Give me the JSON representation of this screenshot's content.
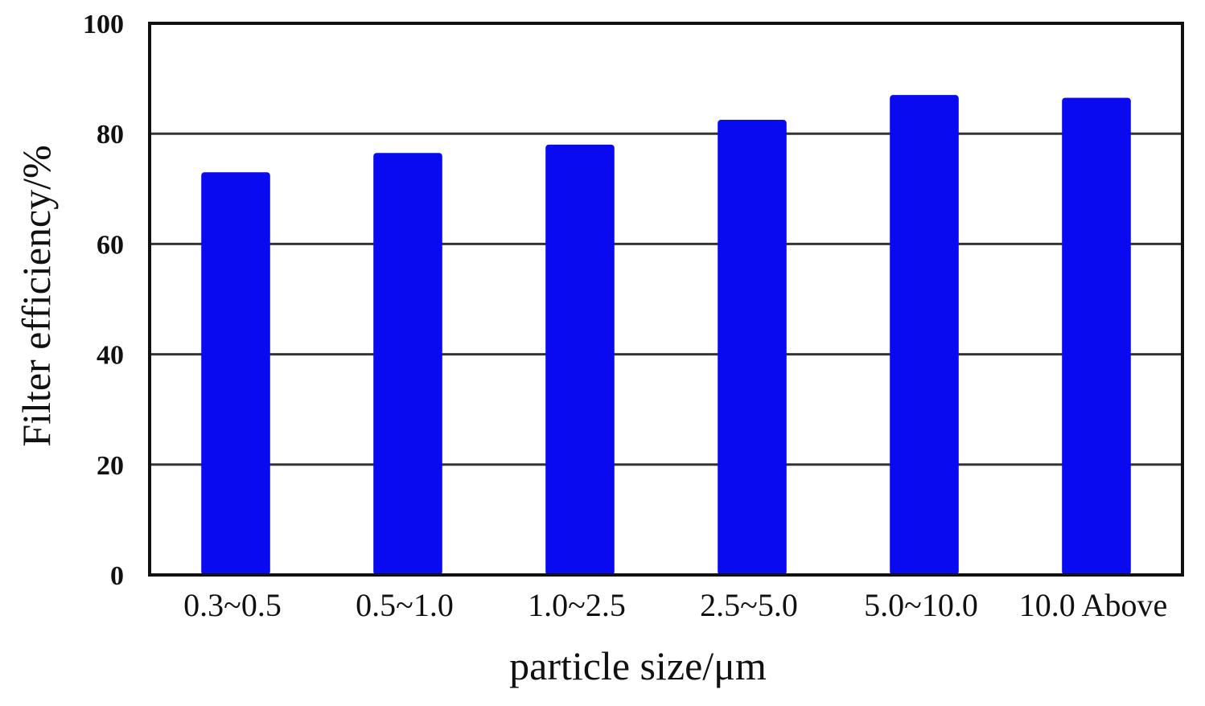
{
  "chart_data": {
    "type": "bar",
    "categories": [
      "0.3~0.5",
      "0.5~1.0",
      "1.0~2.5",
      "2.5~5.0",
      "5.0~10.0",
      "10.0 Above"
    ],
    "values": [
      73,
      76.5,
      78,
      82.5,
      87,
      86.5
    ],
    "xlabel": "particle size/μm",
    "ylabel": "Filter efficiency/%",
    "ylim": [
      0,
      100
    ],
    "yticks": [
      0,
      20,
      40,
      60,
      80,
      100
    ],
    "grid": true,
    "bar_color": "#0a0af0",
    "axis_color": "#111111",
    "grid_color": "#333333"
  }
}
